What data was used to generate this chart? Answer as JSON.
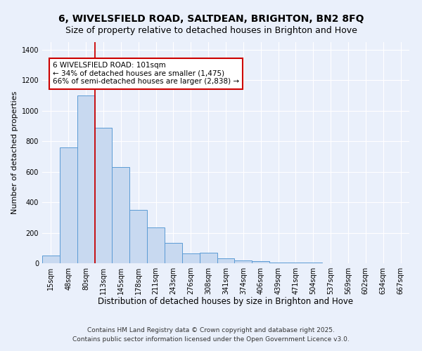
{
  "title1": "6, WIVELSFIELD ROAD, SALTDEAN, BRIGHTON, BN2 8FQ",
  "title2": "Size of property relative to detached houses in Brighton and Hove",
  "xlabel": "Distribution of detached houses by size in Brighton and Hove",
  "ylabel": "Number of detached properties",
  "bar_labels": [
    "15sqm",
    "48sqm",
    "80sqm",
    "113sqm",
    "145sqm",
    "178sqm",
    "211sqm",
    "243sqm",
    "276sqm",
    "308sqm",
    "341sqm",
    "374sqm",
    "406sqm",
    "439sqm",
    "471sqm",
    "504sqm",
    "537sqm",
    "569sqm",
    "602sqm",
    "634sqm",
    "667sqm"
  ],
  "bar_heights": [
    50,
    760,
    1100,
    890,
    630,
    350,
    235,
    135,
    65,
    70,
    30,
    20,
    15,
    5,
    5,
    5,
    2,
    2,
    2,
    2,
    2
  ],
  "bar_color": "#c8d9f0",
  "bar_edgecolor": "#5b9bd5",
  "background_color": "#eaf0fb",
  "grid_color": "#ffffff",
  "vline_x_index": 2.5,
  "vline_color": "#cc0000",
  "annotation_title": "6 WIVELSFIELD ROAD: 101sqm",
  "annotation_line1": "← 34% of detached houses are smaller (1,475)",
  "annotation_line2": "66% of semi-detached houses are larger (2,838) →",
  "annotation_box_color": "#ffffff",
  "annotation_box_edgecolor": "#cc0000",
  "ylim": [
    0,
    1450
  ],
  "yticks": [
    0,
    200,
    400,
    600,
    800,
    1000,
    1200,
    1400
  ],
  "footnote1": "Contains HM Land Registry data © Crown copyright and database right 2025.",
  "footnote2": "Contains public sector information licensed under the Open Government Licence v3.0.",
  "title1_fontsize": 10,
  "title2_fontsize": 9,
  "xlabel_fontsize": 8.5,
  "ylabel_fontsize": 8,
  "tick_fontsize": 7,
  "annotation_fontsize": 7.5,
  "footnote_fontsize": 6.5
}
